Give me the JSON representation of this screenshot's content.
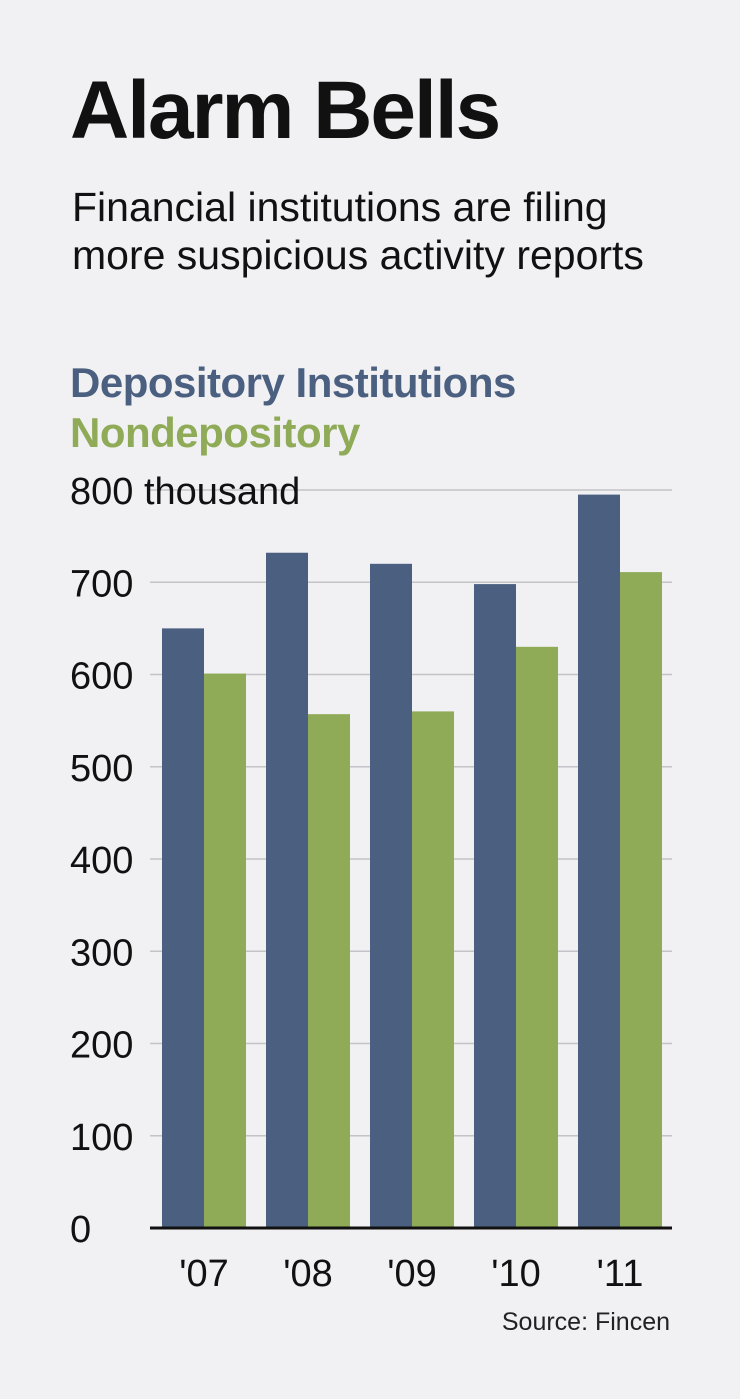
{
  "header": {
    "title": "Alarm Bells",
    "subtitle": "Financial institutions are filing more suspicious activity reports"
  },
  "legend": [
    {
      "label": "Depository Institutions",
      "color": "#4b6080"
    },
    {
      "label": "Nondepository",
      "color": "#8fab57"
    }
  ],
  "source": "Source: Fincen",
  "chart_data": {
    "type": "bar",
    "categories": [
      "'07",
      "'08",
      "'09",
      "'10",
      "'11"
    ],
    "series": [
      {
        "name": "Depository Institutions",
        "values": [
          650,
          732,
          720,
          698,
          795
        ],
        "color": "#4b6080"
      },
      {
        "name": "Nondepository",
        "values": [
          601,
          557,
          560,
          630,
          711
        ],
        "color": "#8fab57"
      }
    ],
    "yticks": [
      0,
      100,
      200,
      300,
      400,
      500,
      600,
      700,
      800
    ],
    "ytick_labels": [
      "0",
      "100",
      "200",
      "300",
      "400",
      "500",
      "600",
      "700",
      "800 thousand"
    ],
    "ylim": [
      0,
      800
    ],
    "grid": true,
    "legend_position": "top-left"
  }
}
